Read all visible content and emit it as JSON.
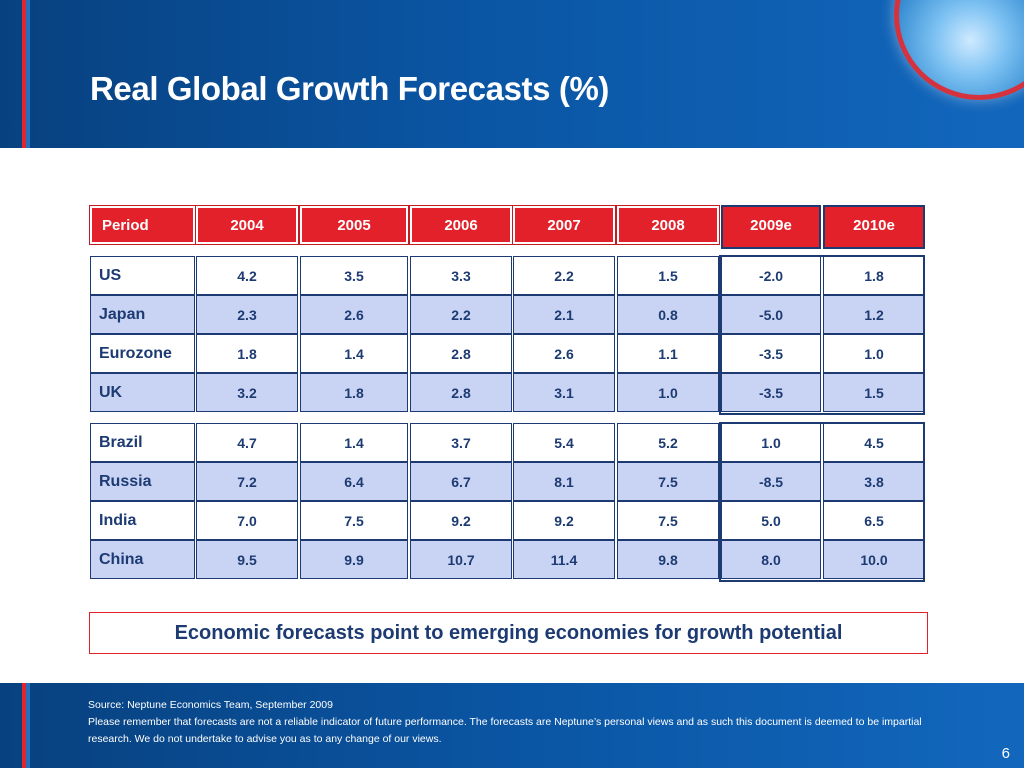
{
  "title": "Real Global Growth Forecasts (%)",
  "table": {
    "period_label": "Period",
    "years": [
      "2004",
      "2005",
      "2006",
      "2007",
      "2008"
    ],
    "estimates": [
      "2009e",
      "2010e"
    ],
    "developed": [
      {
        "name": "US",
        "values": [
          "4.2",
          "3.5",
          "3.3",
          "2.2",
          "1.5"
        ],
        "est": [
          "-2.0",
          "1.8"
        ]
      },
      {
        "name": "Japan",
        "values": [
          "2.3",
          "2.6",
          "2.2",
          "2.1",
          "0.8"
        ],
        "est": [
          "-5.0",
          "1.2"
        ]
      },
      {
        "name": "Eurozone",
        "values": [
          "1.8",
          "1.4",
          "2.8",
          "2.6",
          "1.1"
        ],
        "est": [
          "-3.5",
          "1.0"
        ]
      },
      {
        "name": "UK",
        "values": [
          "3.2",
          "1.8",
          "2.8",
          "3.1",
          "1.0"
        ],
        "est": [
          "-3.5",
          "1.5"
        ]
      }
    ],
    "emerging": [
      {
        "name": "Brazil",
        "values": [
          "4.7",
          "1.4",
          "3.7",
          "5.4",
          "5.2"
        ],
        "est": [
          "1.0",
          "4.5"
        ]
      },
      {
        "name": "Russia",
        "values": [
          "7.2",
          "6.4",
          "6.7",
          "8.1",
          "7.5"
        ],
        "est": [
          "-8.5",
          "3.8"
        ]
      },
      {
        "name": "India",
        "values": [
          "7.0",
          "7.5",
          "9.2",
          "9.2",
          "7.5"
        ],
        "est": [
          "5.0",
          "6.5"
        ]
      },
      {
        "name": "China",
        "values": [
          "9.5",
          "9.9",
          "10.7",
          "11.4",
          "9.8"
        ],
        "est": [
          "8.0",
          "10.0"
        ]
      }
    ]
  },
  "callout": "Economic forecasts point to emerging economies for growth potential",
  "footer": {
    "source": "Source: Neptune Economics Team, September 2009",
    "disclaimer": "Please remember that forecasts are not a reliable indicator of future performance. The forecasts are Neptune’s personal views and as such this document is deemed to be impartial research. We do not undertake to advise you as to any change of our views.",
    "page_number": "6"
  }
}
